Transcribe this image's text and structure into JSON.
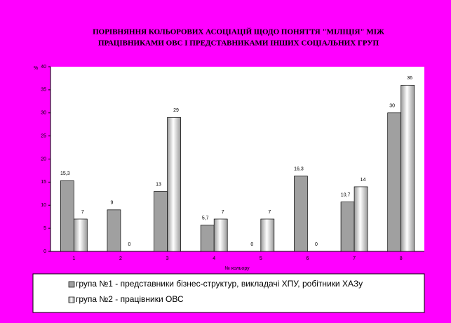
{
  "chart_data": {
    "type": "bar",
    "title": "ПОРІВНЯННЯ КОЛЬОРОВИХ АСОЦІАЦІЙ ЩОДО ПОНЯТТЯ \"МІЛІЦІЯ\" МІЖ",
    "subtitle": "ПРАЦІВНИКАМИ ОВС І ПРЕДСТАВНИКАМИ ІНШИХ СОЦІАЛЬНИХ ГРУП",
    "y_label": "%",
    "x_label": "№ кольору",
    "categories": [
      "1",
      "2",
      "3",
      "4",
      "5",
      "6",
      "7",
      "8"
    ],
    "series": [
      {
        "name": "група №1 - представники бізнес-структур, викладачі ХПУ, робітники ХАЗу",
        "color": "#a0a0a0",
        "values": [
          15.3,
          9,
          13,
          5.7,
          0,
          16.3,
          10.7,
          30
        ],
        "value_labels": [
          "15,3",
          "9",
          "13",
          "5,7",
          "0",
          "16,3",
          "10,7",
          "30"
        ]
      },
      {
        "name": "група №2 - працівники ОВС",
        "color": "#e8e8e8",
        "values": [
          7,
          0,
          29,
          7,
          7,
          0,
          14,
          36
        ],
        "value_labels": [
          "7",
          "0",
          "29",
          "7",
          "7",
          "0",
          "14",
          "36"
        ]
      }
    ],
    "ylim": [
      0,
      40
    ],
    "yticks": [
      0,
      5,
      10,
      15,
      20,
      25,
      30,
      35,
      40
    ],
    "grid": false
  }
}
